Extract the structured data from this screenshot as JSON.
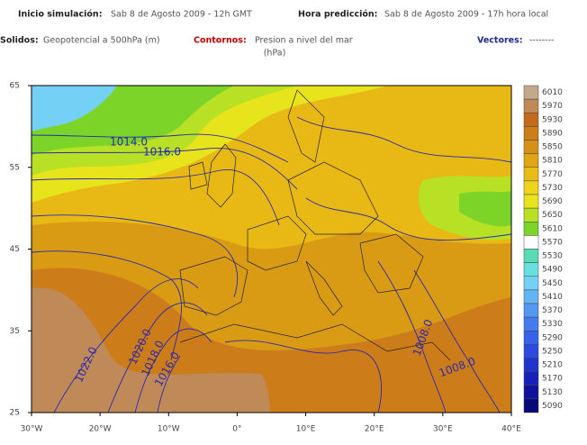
{
  "header": {
    "sim_label": "Inicio simulación:",
    "sim_value": "Sab 8 de Agosto 2009 - 12h GMT",
    "pred_label": "Hora predicción:",
    "pred_value": "Sab 8 de Agosto 2009 - 17h hora local"
  },
  "legend": {
    "solidos_label": "Solidos:",
    "solidos_value": "Geopotencial a 500hPa (m)",
    "contornos_label": "Contornos:",
    "contornos_value": "Presion a nivel del mar",
    "contornos_unit": "(hPa)",
    "vectores_label": "Vectores:",
    "vectores_value": "--------"
  },
  "map": {
    "lat_labels": [
      "65",
      "55",
      "45",
      "35",
      "25"
    ],
    "lon_labels": [
      "30°W",
      "20°W",
      "10°W",
      "0°",
      "10°E",
      "20°E",
      "30°E",
      "40°E"
    ],
    "contour_labels": [
      "1014.0",
      "1016.0",
      "1022.0",
      "1020.0",
      "1018.0",
      "1016.0",
      "1008.0",
      "1008.0"
    ]
  },
  "colorbar": {
    "labels": [
      "6010",
      "5970",
      "5930",
      "5890",
      "5850",
      "5810",
      "5770",
      "5730",
      "5690",
      "5650",
      "5610",
      "5570",
      "5530",
      "5490",
      "5450",
      "5410",
      "5370",
      "5330",
      "5290",
      "5250",
      "5210",
      "5170",
      "5130",
      "5090"
    ],
    "colors": [
      "#c4a88c",
      "#c08a58",
      "#c46a1c",
      "#cc7c18",
      "#d89014",
      "#e0a414",
      "#e8bc14",
      "#f0d41c",
      "#e8e41c",
      "#b8e024",
      "#7cd428",
      "#ffffff",
      "#58dcb4",
      "#68e0e0",
      "#74d0f4",
      "#64b4f4",
      "#5498f0",
      "#447cf0",
      "#3462e8",
      "#2a4ae0",
      "#2034d0",
      "#1822b8",
      "#10129c",
      "#080878"
    ]
  }
}
